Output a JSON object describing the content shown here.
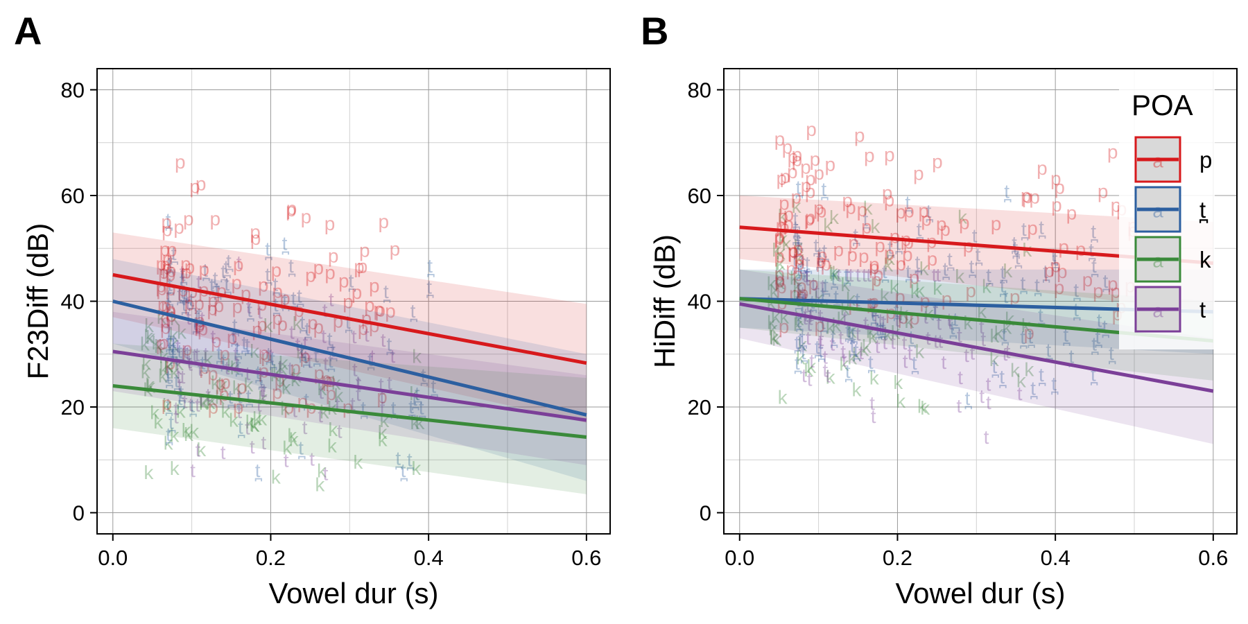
{
  "colors": {
    "p": "#d7191c",
    "t_dental": "#2c5fa0",
    "k": "#3a8a3a",
    "t": "#7b3f98"
  },
  "legend": {
    "title": "POA",
    "glyph": "a",
    "items": [
      {
        "key": "p",
        "label": "p",
        "color": "#d7191c"
      },
      {
        "key": "t_dental",
        "label": "t̪",
        "color": "#2c5fa0"
      },
      {
        "key": "k",
        "label": "k",
        "color": "#3a8a3a"
      },
      {
        "key": "t",
        "label": "t",
        "color": "#7b3f98"
      }
    ]
  },
  "chart_data": [
    {
      "panel": "A",
      "type": "scatter",
      "xlabel": "Vowel dur (s)",
      "ylabel": "F23Diff (dB)",
      "xlim": [
        -0.02,
        0.63
      ],
      "ylim": [
        -4,
        84
      ],
      "xticks": [
        "0.0",
        "0.2",
        "0.4",
        "0.6"
      ],
      "yticks": [
        "0",
        "20",
        "40",
        "60",
        "80"
      ],
      "grid": true,
      "fits": [
        {
          "key": "p",
          "x": [
            0,
            0.6
          ],
          "y": [
            45,
            28.3
          ],
          "band_lo": [
            37,
            17
          ],
          "band_hi": [
            53,
            39.5
          ]
        },
        {
          "key": "t_dental",
          "x": [
            0,
            0.6
          ],
          "y": [
            40,
            18.5
          ],
          "band_lo": [
            32,
            6
          ],
          "band_hi": [
            48,
            30
          ]
        },
        {
          "key": "k",
          "x": [
            0,
            0.6
          ],
          "y": [
            24,
            14.3
          ],
          "band_lo": [
            16,
            3.5
          ],
          "band_hi": [
            32,
            25.5
          ]
        },
        {
          "key": "t",
          "x": [
            0,
            0.6
          ],
          "y": [
            30.5,
            17.5
          ],
          "band_lo": [
            23,
            9
          ],
          "band_hi": [
            38,
            26
          ]
        }
      ],
      "clusters": {
        "p": [
          [
            0.06,
            0.36,
            20,
            76,
            120
          ]
        ],
        "t_dental": [
          [
            0.07,
            0.42,
            8,
            68,
            100
          ]
        ],
        "k": [
          [
            0.04,
            0.4,
            2,
            40,
            90
          ]
        ],
        "t": [
          [
            0.08,
            0.36,
            4,
            50,
            80
          ]
        ]
      }
    },
    {
      "panel": "B",
      "type": "scatter",
      "xlabel": "Vowel dur (s)",
      "ylabel": "HiDiff (dB)",
      "xlim": [
        -0.02,
        0.63
      ],
      "ylim": [
        -4,
        84
      ],
      "xticks": [
        "0.0",
        "0.2",
        "0.4",
        "0.6"
      ],
      "yticks": [
        "0",
        "20",
        "40",
        "60",
        "80"
      ],
      "grid": true,
      "fits": [
        {
          "key": "p",
          "x": [
            0,
            0.6
          ],
          "y": [
            54,
            47.2
          ],
          "band_lo": [
            48,
            38
          ],
          "band_hi": [
            60,
            55
          ]
        },
        {
          "key": "t_dental",
          "x": [
            0,
            0.6
          ],
          "y": [
            40.5,
            38
          ],
          "band_lo": [
            35,
            30
          ],
          "band_hi": [
            46,
            46
          ]
        },
        {
          "key": "k",
          "x": [
            0,
            0.6
          ],
          "y": [
            40.5,
            32.5
          ],
          "band_lo": [
            35,
            25
          ],
          "band_hi": [
            46,
            40
          ]
        },
        {
          "key": "t",
          "x": [
            0,
            0.6
          ],
          "y": [
            39.5,
            23
          ],
          "band_lo": [
            33,
            13
          ],
          "band_hi": [
            46,
            33
          ]
        }
      ],
      "clusters": {
        "p": [
          [
            0.05,
            0.52,
            25,
            78,
            130
          ]
        ],
        "t_dental": [
          [
            0.07,
            0.48,
            18,
            70,
            110
          ]
        ],
        "k": [
          [
            0.04,
            0.38,
            15,
            60,
            90
          ]
        ],
        "t": [
          [
            0.08,
            0.36,
            3,
            45,
            80
          ]
        ]
      }
    }
  ],
  "panels": {
    "A": {
      "label": "A"
    },
    "B": {
      "label": "B"
    }
  }
}
